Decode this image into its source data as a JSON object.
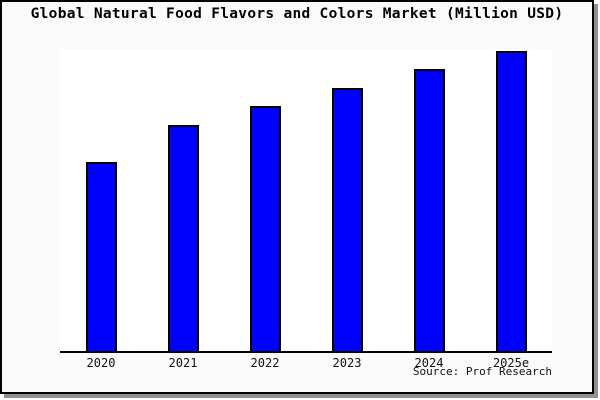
{
  "title": "Global Natural Food Flavors and Colors Market (Million USD)",
  "source_note": "Source: Prof Research",
  "colors": {
    "bar_fill": "#0000ff",
    "bar_border": "#000000",
    "page_background": "#fafafa",
    "plot_background": "#ffffff",
    "axis": "#000000",
    "frame_border": "#000000",
    "frame_shadow": "#909090",
    "text": "#000000"
  },
  "chart_data": {
    "type": "bar",
    "title": "Global Natural Food Flavors and Colors Market (Million USD)",
    "unit": "Million USD",
    "categories": [
      "2020",
      "2021",
      "2022",
      "2023",
      "2024",
      "2025e"
    ],
    "values_relative": [
      63,
      75.3,
      81.8,
      87.8,
      94,
      100
    ],
    "value_note": "No y-axis or data labels shown; values are bar heights as percent of tallest bar (2025e)",
    "xlabel": "",
    "ylabel": "",
    "y_axis_visible": false,
    "gridlines": false,
    "legend": false,
    "source": "Source: Prof Research"
  }
}
